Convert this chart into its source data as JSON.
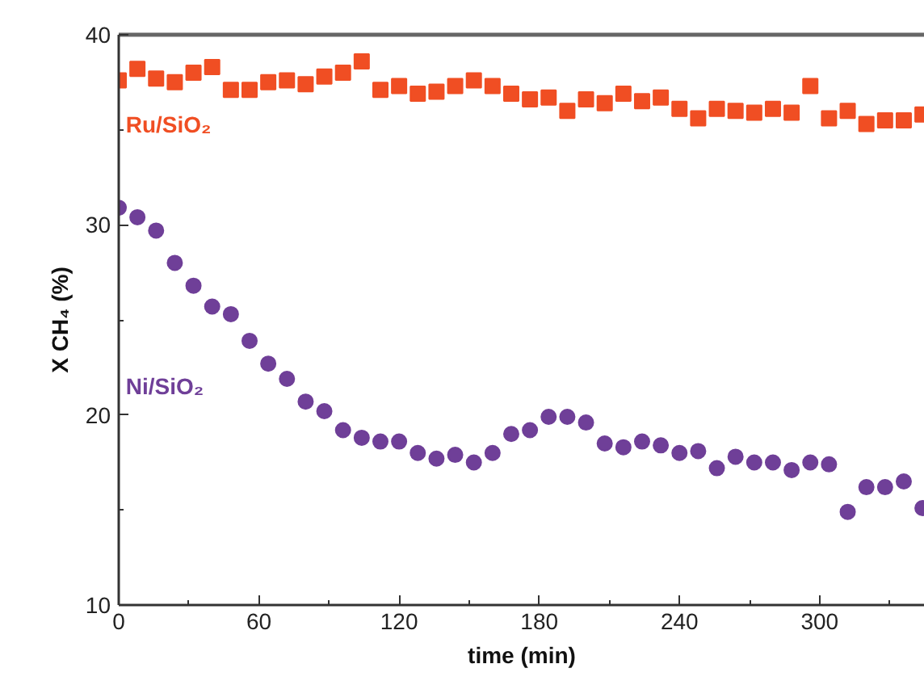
{
  "chart_data": {
    "type": "scatter",
    "xlabel": "time (min)",
    "ylabel": "X CH₄ (%)",
    "x": [
      0,
      8,
      16,
      24,
      32,
      40,
      48,
      56,
      64,
      72,
      80,
      88,
      96,
      104,
      112,
      120,
      128,
      136,
      144,
      152,
      160,
      168,
      176,
      184,
      192,
      200,
      208,
      216,
      224,
      232,
      240,
      248,
      256,
      264,
      272,
      280,
      288,
      296,
      304,
      312,
      320,
      328,
      336,
      344
    ],
    "series": [
      {
        "name": "Ru/SiO₂",
        "color": "#f04e23",
        "marker": "square",
        "values": [
          37.6,
          38.2,
          37.7,
          37.5,
          38.0,
          38.3,
          37.1,
          37.1,
          37.5,
          37.6,
          37.4,
          37.8,
          38.0,
          38.6,
          37.1,
          37.3,
          36.9,
          37.0,
          37.3,
          37.6,
          37.3,
          36.9,
          36.6,
          36.7,
          36.0,
          36.6,
          36.4,
          36.9,
          36.5,
          36.7,
          36.1,
          35.6,
          36.1,
          36.0,
          35.9,
          36.1,
          35.9,
          37.3,
          35.6,
          36.0,
          35.3,
          35.5,
          35.5,
          35.8
        ]
      },
      {
        "name": "Ni/SiO₂",
        "color": "#6f3f98",
        "marker": "circle",
        "values": [
          30.9,
          30.4,
          29.7,
          28.0,
          26.8,
          25.7,
          25.3,
          23.9,
          22.7,
          21.9,
          20.7,
          20.2,
          19.2,
          18.8,
          18.6,
          18.6,
          18.0,
          17.7,
          17.9,
          17.5,
          18.0,
          19.0,
          19.2,
          19.9,
          19.9,
          19.6,
          18.5,
          18.3,
          18.6,
          18.4,
          18.0,
          18.1,
          17.2,
          17.8,
          17.5,
          17.5,
          17.1,
          17.5,
          17.4,
          14.9,
          16.2,
          16.2,
          16.5,
          15.1
        ]
      }
    ],
    "xlim": [
      0,
      345
    ],
    "ylim": [
      10,
      40
    ],
    "xticks": [
      0,
      60,
      120,
      180,
      240,
      300
    ],
    "yticks": [
      10,
      20,
      30,
      40
    ],
    "grid": false
  }
}
